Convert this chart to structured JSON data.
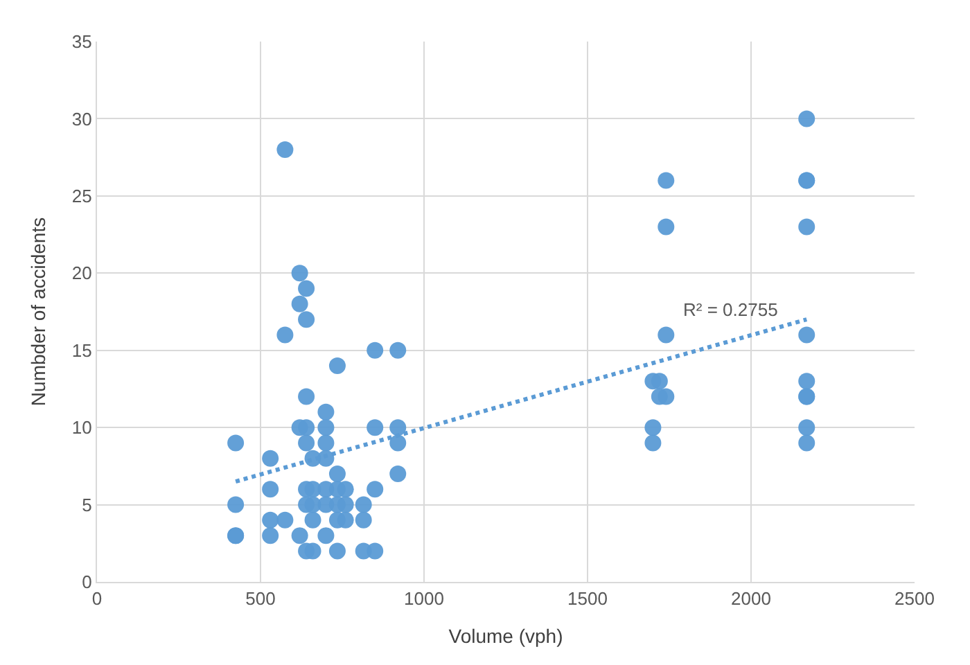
{
  "chart_data": {
    "type": "scatter",
    "xlabel": "Volume (vph)",
    "ylabel": "Numbder of accidents",
    "xlim": [
      0,
      2500
    ],
    "xticks": [
      0,
      500,
      1000,
      1500,
      2000,
      2500
    ],
    "ylim": [
      0,
      35
    ],
    "yticks": [
      0,
      5,
      10,
      15,
      20,
      25,
      30,
      35
    ],
    "grid": true,
    "legend": false,
    "series": [
      {
        "color": "#5b9bd5",
        "marker": "circle",
        "x": [
          424,
          424,
          424,
          424,
          530,
          530,
          530,
          530,
          575,
          575,
          575,
          620,
          620,
          620,
          620,
          640,
          640,
          640,
          640,
          640,
          640,
          640,
          640,
          660,
          660,
          660,
          660,
          660,
          700,
          700,
          700,
          700,
          700,
          700,
          700,
          735,
          735,
          735,
          735,
          735,
          735,
          760,
          760,
          760,
          815,
          815,
          815,
          850,
          850,
          850,
          850,
          920,
          920,
          920,
          920,
          1700,
          1700,
          1700,
          1720,
          1720,
          1740,
          1740,
          1740,
          1740,
          2170,
          2170,
          2170,
          2170,
          2170,
          2170,
          2170,
          2170,
          2170,
          2170
        ],
        "values": [
          9,
          5,
          3,
          3,
          8,
          6,
          4,
          3,
          28,
          16,
          4,
          20,
          18,
          10,
          3,
          19,
          17,
          12,
          10,
          9,
          2,
          6,
          5,
          8,
          6,
          4,
          5,
          2,
          11,
          10,
          9,
          8,
          6,
          5,
          3,
          14,
          6,
          5,
          7,
          4,
          2,
          6,
          5,
          4,
          5,
          4,
          2,
          15,
          10,
          6,
          2,
          15,
          10,
          9,
          7,
          10,
          13,
          9,
          13,
          12,
          26,
          23,
          16,
          12,
          30,
          26,
          26,
          23,
          16,
          13,
          12,
          12,
          10,
          9
        ]
      },
      {
        "type": "line",
        "color": "#5b9bd5",
        "line_style": "dotted",
        "marker": "none",
        "x": [
          424,
          2170
        ],
        "values": [
          6.5,
          17
        ]
      }
    ],
    "annotations": [
      "R² = 0.2755"
    ]
  }
}
